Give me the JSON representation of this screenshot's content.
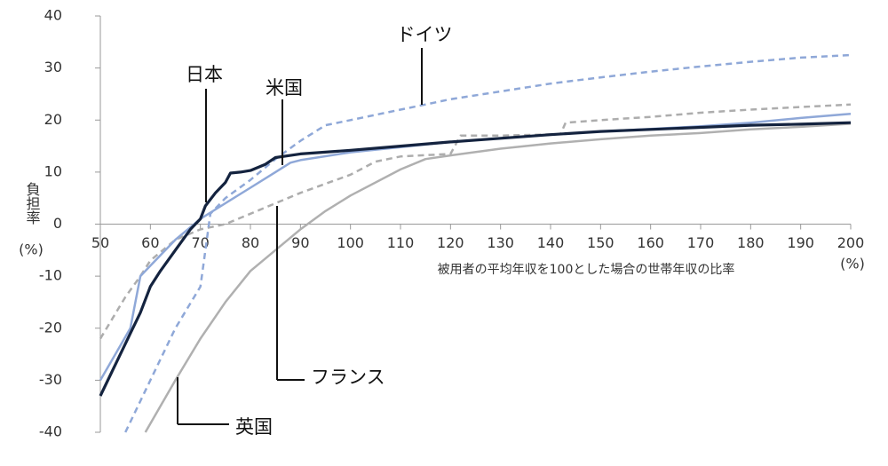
{
  "chart_data": {
    "type": "line",
    "x_label": "被用者の平均年収を100とした場合の世帯年収の比率",
    "x_unit": "(%)",
    "y_label": "負担率",
    "y_unit": "(%)",
    "xlim": [
      50,
      200
    ],
    "xticks": [
      50,
      60,
      70,
      80,
      90,
      100,
      110,
      120,
      130,
      140,
      150,
      160,
      170,
      180,
      190,
      200
    ],
    "ylim": [
      -40,
      40
    ],
    "yticks": [
      -40,
      -30,
      -20,
      -10,
      0,
      10,
      20,
      30,
      40
    ],
    "series": [
      {
        "name": "日本",
        "color": "#14233f",
        "dashed": false,
        "width": 3.2,
        "x": [
          50,
          53,
          56,
          58,
          60,
          62,
          65,
          68,
          70,
          71,
          73,
          75,
          76,
          78,
          80,
          83,
          85,
          88,
          90,
          100,
          110,
          120,
          130,
          140,
          150,
          160,
          170,
          180,
          190,
          200
        ],
        "values": [
          -33,
          -27,
          -21,
          -17,
          -12,
          -9,
          -5,
          -1,
          1,
          3.5,
          6,
          8,
          9.8,
          10,
          10.3,
          11.5,
          12.8,
          13.2,
          13.5,
          14.2,
          15,
          15.8,
          16.5,
          17.2,
          17.8,
          18.2,
          18.6,
          19,
          19.2,
          19.5
        ]
      },
      {
        "name": "米国",
        "color": "#8fa8d8",
        "dashed": false,
        "width": 2.5,
        "x": [
          50,
          56,
          58,
          60,
          65,
          70,
          75,
          80,
          85,
          88,
          90,
          100,
          110,
          120,
          130,
          140,
          150,
          160,
          170,
          180,
          190,
          200
        ],
        "values": [
          -30,
          -20,
          -10,
          -8,
          -3,
          1,
          4,
          7,
          10,
          11.8,
          12.3,
          13.8,
          14.8,
          15.8,
          16.5,
          17.2,
          17.8,
          18.3,
          18.8,
          19.5,
          20.4,
          21.2
        ]
      },
      {
        "name": "ドイツ",
        "color": "#8fa8d8",
        "dashed": true,
        "width": 2.5,
        "x": [
          55,
          60,
          65,
          70,
          72,
          75,
          80,
          85,
          90,
          95,
          100,
          110,
          115,
          120,
          130,
          140,
          150,
          160,
          170,
          180,
          190,
          200
        ],
        "values": [
          -40,
          -30,
          -20,
          -12,
          2,
          5,
          8.5,
          12.5,
          16,
          19,
          20,
          22,
          23,
          24,
          25.5,
          27,
          28.2,
          29.3,
          30.3,
          31.2,
          32,
          32.5
        ]
      },
      {
        "name": "フランス",
        "color": "#adadad",
        "dashed": true,
        "width": 2.5,
        "x": [
          50,
          55,
          58,
          60,
          65,
          70,
          75,
          80,
          85,
          90,
          100,
          105,
          110,
          120,
          122,
          130,
          142,
          143,
          150,
          160,
          170,
          180,
          190,
          200
        ],
        "values": [
          -22,
          -14,
          -10,
          -7,
          -3,
          -1,
          0,
          2,
          4,
          6,
          9.5,
          12,
          13,
          13.5,
          17,
          17,
          17.3,
          19.5,
          20,
          20.6,
          21.4,
          22,
          22.5,
          23
        ]
      },
      {
        "name": "英国",
        "color": "#b0b0b0",
        "dashed": false,
        "width": 2.5,
        "x": [
          59,
          65,
          70,
          75,
          80,
          85,
          90,
          95,
          100,
          110,
          115,
          120,
          130,
          140,
          150,
          160,
          170,
          180,
          190,
          200
        ],
        "values": [
          -40,
          -30,
          -22,
          -15,
          -9,
          -5,
          -1,
          2.5,
          5.5,
          10.5,
          12.5,
          13.2,
          14.5,
          15.5,
          16.3,
          17,
          17.5,
          18.2,
          18.7,
          19.3
        ]
      }
    ]
  }
}
